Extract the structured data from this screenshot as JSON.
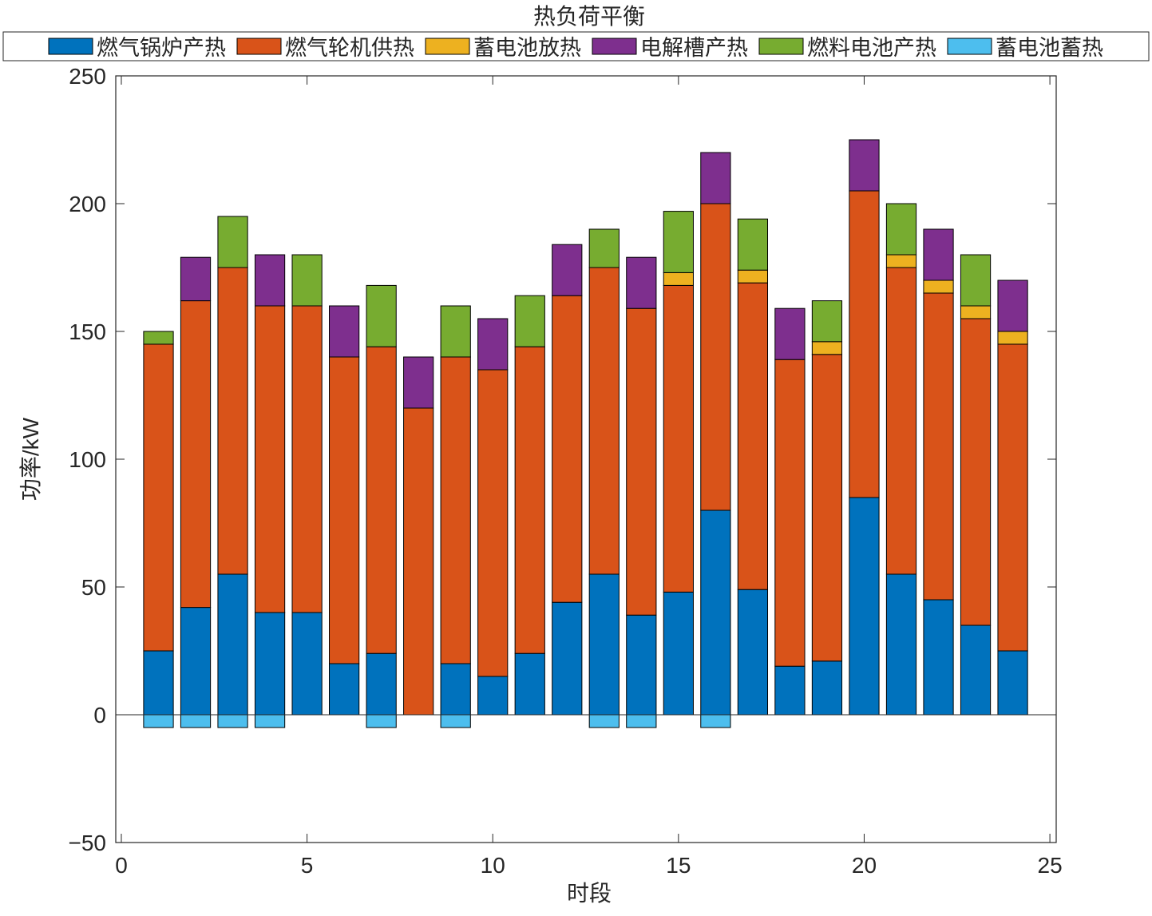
{
  "chart_data": {
    "type": "bar",
    "stacked": true,
    "title": "热负荷平衡",
    "xlabel": "时段",
    "ylabel": "功率/kW",
    "xlim": [
      -0.15,
      25.17
    ],
    "ylim": [
      -50,
      250
    ],
    "xticks": [
      0,
      5,
      10,
      15,
      20,
      25
    ],
    "yticks": [
      -50,
      0,
      50,
      100,
      150,
      200,
      250
    ],
    "grid": false,
    "legend_placement": "top",
    "x": [
      1,
      2,
      3,
      4,
      5,
      6,
      7,
      8,
      9,
      10,
      11,
      12,
      13,
      14,
      15,
      16,
      17,
      18,
      19,
      20,
      21,
      22,
      23,
      24
    ],
    "series": [
      {
        "name": "燃气锅炉产热",
        "color": "#0072BD",
        "values": [
          25,
          42,
          55,
          40,
          40,
          20,
          24,
          0,
          20,
          15,
          24,
          44,
          55,
          39,
          48,
          80,
          49,
          19,
          21,
          85,
          55,
          45,
          35,
          25
        ]
      },
      {
        "name": "燃气轮机供热",
        "color": "#D95319",
        "values": [
          120,
          120,
          120,
          120,
          120,
          120,
          120,
          120,
          120,
          120,
          120,
          120,
          120,
          120,
          120,
          120,
          120,
          120,
          120,
          120,
          120,
          120,
          120,
          120
        ]
      },
      {
        "name": "蓄电池放热",
        "color": "#EDB120",
        "values": [
          0,
          0,
          0,
          0,
          0,
          0,
          0,
          0,
          0,
          0,
          0,
          0,
          0,
          0,
          5,
          0,
          5,
          0,
          5,
          0,
          5,
          5,
          5,
          5
        ]
      },
      {
        "name": "电解槽产热",
        "color": "#7E2F8E",
        "values": [
          0,
          17,
          0,
          20,
          0,
          20,
          0,
          20,
          0,
          20,
          0,
          20,
          0,
          20,
          0,
          20,
          0,
          20,
          0,
          20,
          0,
          20,
          0,
          20
        ]
      },
      {
        "name": "燃料电池产热",
        "color": "#77AC30",
        "values": [
          5,
          0,
          20,
          0,
          20,
          0,
          24,
          0,
          20,
          0,
          20,
          0,
          15,
          0,
          24,
          0,
          20,
          0,
          16,
          0,
          20,
          0,
          20,
          0
        ]
      },
      {
        "name": "蓄电池蓄热",
        "color": "#4DBEEE",
        "values": [
          -5,
          -5,
          -5,
          -5,
          0,
          0,
          -5,
          0,
          -5,
          0,
          0,
          0,
          -5,
          -5,
          0,
          -5,
          0,
          0,
          0,
          0,
          0,
          0,
          0,
          0
        ]
      }
    ]
  }
}
